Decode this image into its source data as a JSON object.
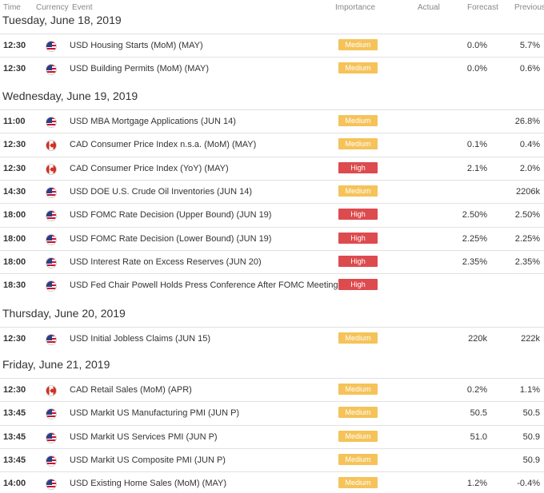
{
  "header": {
    "time": "Time",
    "currency": "Currency",
    "event": "Event",
    "importance": "Importance",
    "actual": "Actual",
    "forecast": "Forecast",
    "previous": "Previous"
  },
  "days": [
    {
      "date": "Tuesday, June 18, 2019",
      "events": [
        {
          "time": "12:30",
          "currency": "USD",
          "flag_icon": "us-flag-icon",
          "event": "USD Housing Starts (MoM) (MAY)",
          "importance": "Medium",
          "actual": "",
          "forecast": "0.0%",
          "previous": "5.7%"
        },
        {
          "time": "12:30",
          "currency": "USD",
          "flag_icon": "us-flag-icon",
          "event": "USD Building Permits (MoM) (MAY)",
          "importance": "Medium",
          "actual": "",
          "forecast": "0.0%",
          "previous": "0.6%"
        }
      ]
    },
    {
      "date": "Wednesday, June 19, 2019",
      "events": [
        {
          "time": "11:00",
          "currency": "USD",
          "flag_icon": "us-flag-icon",
          "event": "USD MBA Mortgage Applications (JUN 14)",
          "importance": "Medium",
          "actual": "",
          "forecast": "",
          "previous": "26.8%"
        },
        {
          "time": "12:30",
          "currency": "CAD",
          "flag_icon": "canada-flag-icon",
          "event": "CAD Consumer Price Index n.s.a. (MoM) (MAY)",
          "importance": "Medium",
          "actual": "",
          "forecast": "0.1%",
          "previous": "0.4%"
        },
        {
          "time": "12:30",
          "currency": "CAD",
          "flag_icon": "canada-flag-icon",
          "event": "CAD Consumer Price Index (YoY) (MAY)",
          "importance": "High",
          "actual": "",
          "forecast": "2.1%",
          "previous": "2.0%"
        },
        {
          "time": "14:30",
          "currency": "USD",
          "flag_icon": "us-flag-icon",
          "event": "USD DOE U.S. Crude Oil Inventories (JUN 14)",
          "importance": "Medium",
          "actual": "",
          "forecast": "",
          "previous": "2206k"
        },
        {
          "time": "18:00",
          "currency": "USD",
          "flag_icon": "us-flag-icon",
          "event": "USD FOMC Rate Decision (Upper Bound) (JUN 19)",
          "importance": "High",
          "actual": "",
          "forecast": "2.50%",
          "previous": "2.50%"
        },
        {
          "time": "18:00",
          "currency": "USD",
          "flag_icon": "us-flag-icon",
          "event": "USD FOMC Rate Decision (Lower Bound) (JUN 19)",
          "importance": "High",
          "actual": "",
          "forecast": "2.25%",
          "previous": "2.25%"
        },
        {
          "time": "18:00",
          "currency": "USD",
          "flag_icon": "us-flag-icon",
          "event": "USD Interest Rate on Excess Reserves (JUN 20)",
          "importance": "High",
          "actual": "",
          "forecast": "2.35%",
          "previous": "2.35%"
        },
        {
          "time": "18:30",
          "currency": "USD",
          "flag_icon": "us-flag-icon",
          "event": "USD Fed Chair Powell Holds Press Conference After FOMC Meeting",
          "importance": "High",
          "actual": "",
          "forecast": "",
          "previous": ""
        }
      ]
    },
    {
      "date": "Thursday, June 20, 2019",
      "events": [
        {
          "time": "12:30",
          "currency": "USD",
          "flag_icon": "us-flag-icon",
          "event": "USD Initial Jobless Claims (JUN 15)",
          "importance": "Medium",
          "actual": "",
          "forecast": "220k",
          "previous": "222k"
        }
      ]
    },
    {
      "date": "Friday, June 21, 2019",
      "events": [
        {
          "time": "12:30",
          "currency": "CAD",
          "flag_icon": "canada-flag-icon",
          "event": "CAD Retail Sales (MoM) (APR)",
          "importance": "Medium",
          "actual": "",
          "forecast": "0.2%",
          "previous": "1.1%"
        },
        {
          "time": "13:45",
          "currency": "USD",
          "flag_icon": "us-flag-icon",
          "event": "USD Markit US Manufacturing PMI (JUN P)",
          "importance": "Medium",
          "actual": "",
          "forecast": "50.5",
          "previous": "50.5"
        },
        {
          "time": "13:45",
          "currency": "USD",
          "flag_icon": "us-flag-icon",
          "event": "USD Markit US Services PMI (JUN P)",
          "importance": "Medium",
          "actual": "",
          "forecast": "51.0",
          "previous": "50.9"
        },
        {
          "time": "13:45",
          "currency": "USD",
          "flag_icon": "us-flag-icon",
          "event": "USD Markit US Composite PMI (JUN P)",
          "importance": "Medium",
          "actual": "",
          "forecast": "",
          "previous": "50.9"
        },
        {
          "time": "14:00",
          "currency": "USD",
          "flag_icon": "us-flag-icon",
          "event": "USD Existing Home Sales (MoM) (MAY)",
          "importance": "Medium",
          "actual": "",
          "forecast": "1.2%",
          "previous": "-0.4%"
        }
      ]
    }
  ]
}
